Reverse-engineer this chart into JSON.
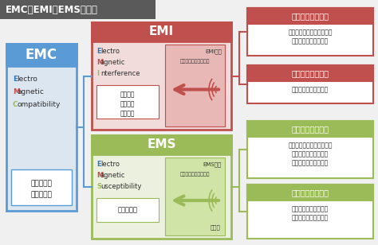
{
  "title": "EMCとEMIとEMSの違い",
  "title_bg": "#5a5a5a",
  "title_color": "#ffffff",
  "bg_color": "#f0f0f0",
  "emc": {
    "label": "EMC",
    "sub1": "Electro",
    "sub2": "Magnetic",
    "sub3": "Compatibility",
    "detail1": "電磁両立性",
    "detail2": "電磁適合性",
    "border": "#5b9bd5",
    "header_bg": "#5b9bd5",
    "body_bg": "#dce6f1"
  },
  "emi": {
    "label": "EMI",
    "sub1": "Electro",
    "sub2": "Magnetic",
    "sub3": "Interference",
    "detail1": "電磁妨書",
    "detail2": "電磁干渉",
    "detail3": "電磁障害",
    "cm_label": "EMI対策",
    "cm_text": "ノイズを発生させない",
    "border": "#c0504d",
    "header_bg": "#c0504d",
    "body_bg": "#f2dcdb",
    "cm_bg": "#e8b8b7"
  },
  "ems": {
    "label": "EMS",
    "sub1": "Electro",
    "sub2": "Magnetic",
    "sub3": "Susceptibility",
    "detail1": "電磁感受性",
    "cm_label": "EMS対策",
    "cm_text": "ノイズに影響されない",
    "noise_text": "ノイズ",
    "border": "#9bbb59",
    "header_bg": "#9bbb59",
    "body_bg": "#ebf1de",
    "cm_bg": "#d0e4a8"
  },
  "emi_rt": {
    "header": "伝導エミッション",
    "body1": "電子機器のケーブルなどを",
    "body2": "経由して伝わるノイズ",
    "header_bg": "#c0504d",
    "border": "#c0504d"
  },
  "emi_rb": {
    "header": "放射エミッション",
    "body1": "空間に放射するノイズ",
    "header_bg": "#c0504d",
    "border": "#c0504d"
  },
  "ems_rt": {
    "header": "伝導イミュニティ",
    "body1": "電子機器のケーブルなどを",
    "body2": "経由して伝わってきた",
    "body3": "ノイズに対する感受性",
    "header_bg": "#9bbb59",
    "border": "#9bbb59"
  },
  "ems_rb": {
    "header": "放射イミュニティ",
    "body1": "空間から伝わってきた",
    "body2": "ノイズに対する感受性",
    "header_bg": "#9bbb59",
    "border": "#9bbb59"
  },
  "line_blue": "#5b9bd5",
  "line_red": "#c0504d",
  "line_green": "#9bbb59"
}
